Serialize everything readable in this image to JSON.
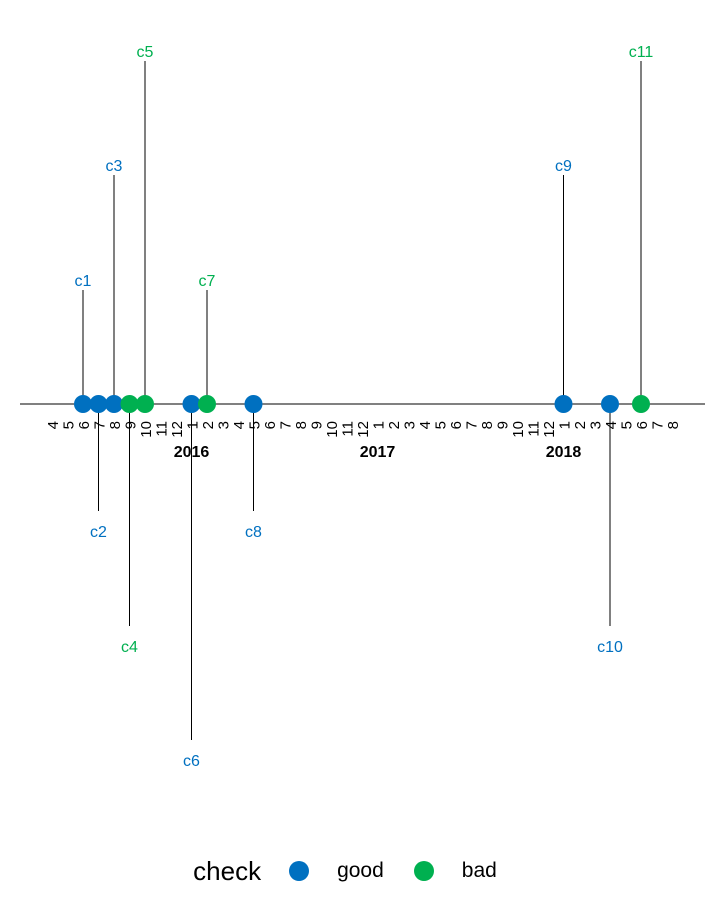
{
  "chart_data": {
    "type": "timeline",
    "events": [
      {
        "label": "c1",
        "date": "2015-06",
        "level": 1,
        "status": "good"
      },
      {
        "label": "c2",
        "date": "2015-07",
        "level": -1,
        "status": "good"
      },
      {
        "label": "c3",
        "date": "2015-08",
        "level": 2,
        "status": "good"
      },
      {
        "label": "c4",
        "date": "2015-09",
        "level": -2,
        "status": "bad"
      },
      {
        "label": "c5",
        "date": "2015-10",
        "level": 3,
        "status": "bad"
      },
      {
        "label": "c6",
        "date": "2016-01",
        "level": -3,
        "status": "good"
      },
      {
        "label": "c7",
        "date": "2016-02",
        "level": 1,
        "status": "bad"
      },
      {
        "label": "c8",
        "date": "2016-05",
        "level": -1,
        "status": "good"
      },
      {
        "label": "c9",
        "date": "2018-01",
        "level": 2,
        "status": "good"
      },
      {
        "label": "c10",
        "date": "2018-04",
        "level": -2,
        "status": "good"
      },
      {
        "label": "c11",
        "date": "2018-06",
        "level": 3,
        "status": "bad"
      }
    ],
    "month_ticks": [
      {
        "label": "4",
        "date": "2015-04"
      },
      {
        "label": "5",
        "date": "2015-05"
      },
      {
        "label": "6",
        "date": "2015-06"
      },
      {
        "label": "7",
        "date": "2015-07"
      },
      {
        "label": "8",
        "date": "2015-08"
      },
      {
        "label": "9",
        "date": "2015-09"
      },
      {
        "label": "10",
        "date": "2015-10"
      },
      {
        "label": "11",
        "date": "2015-11"
      },
      {
        "label": "12",
        "date": "2015-12"
      },
      {
        "label": "1",
        "date": "2016-01"
      },
      {
        "label": "2",
        "date": "2016-02"
      },
      {
        "label": "3",
        "date": "2016-03"
      },
      {
        "label": "4",
        "date": "2016-04"
      },
      {
        "label": "5",
        "date": "2016-05"
      },
      {
        "label": "6",
        "date": "2016-06"
      },
      {
        "label": "7",
        "date": "2016-07"
      },
      {
        "label": "8",
        "date": "2016-08"
      },
      {
        "label": "9",
        "date": "2016-09"
      },
      {
        "label": "10",
        "date": "2016-10"
      },
      {
        "label": "11",
        "date": "2016-11"
      },
      {
        "label": "12",
        "date": "2016-12"
      },
      {
        "label": "1",
        "date": "2017-01"
      },
      {
        "label": "2",
        "date": "2017-02"
      },
      {
        "label": "3",
        "date": "2017-03"
      },
      {
        "label": "4",
        "date": "2017-04"
      },
      {
        "label": "5",
        "date": "2017-05"
      },
      {
        "label": "6",
        "date": "2017-06"
      },
      {
        "label": "7",
        "date": "2017-07"
      },
      {
        "label": "8",
        "date": "2017-08"
      },
      {
        "label": "9",
        "date": "2017-09"
      },
      {
        "label": "10",
        "date": "2017-10"
      },
      {
        "label": "11",
        "date": "2017-11"
      },
      {
        "label": "12",
        "date": "2017-12"
      },
      {
        "label": "1",
        "date": "2018-01"
      },
      {
        "label": "2",
        "date": "2018-02"
      },
      {
        "label": "3",
        "date": "2018-03"
      },
      {
        "label": "4",
        "date": "2018-04"
      },
      {
        "label": "5",
        "date": "2018-05"
      },
      {
        "label": "6",
        "date": "2018-06"
      },
      {
        "label": "7",
        "date": "2018-07"
      },
      {
        "label": "8",
        "date": "2018-08"
      }
    ],
    "year_labels": [
      {
        "label": "2016",
        "date": "2016-01"
      },
      {
        "label": "2017",
        "date": "2017-01"
      },
      {
        "label": "2018",
        "date": "2018-01"
      }
    ],
    "x_range": [
      "2015-04",
      "2018-08"
    ],
    "grid": false,
    "legend_position": "bottom"
  },
  "legend": {
    "title": "check",
    "items": [
      {
        "label": "good",
        "color": "#0070C0"
      },
      {
        "label": "bad",
        "color": "#00B050"
      }
    ]
  },
  "colors": {
    "good": "#0070C0",
    "bad": "#00B050",
    "axis": "#000000"
  }
}
